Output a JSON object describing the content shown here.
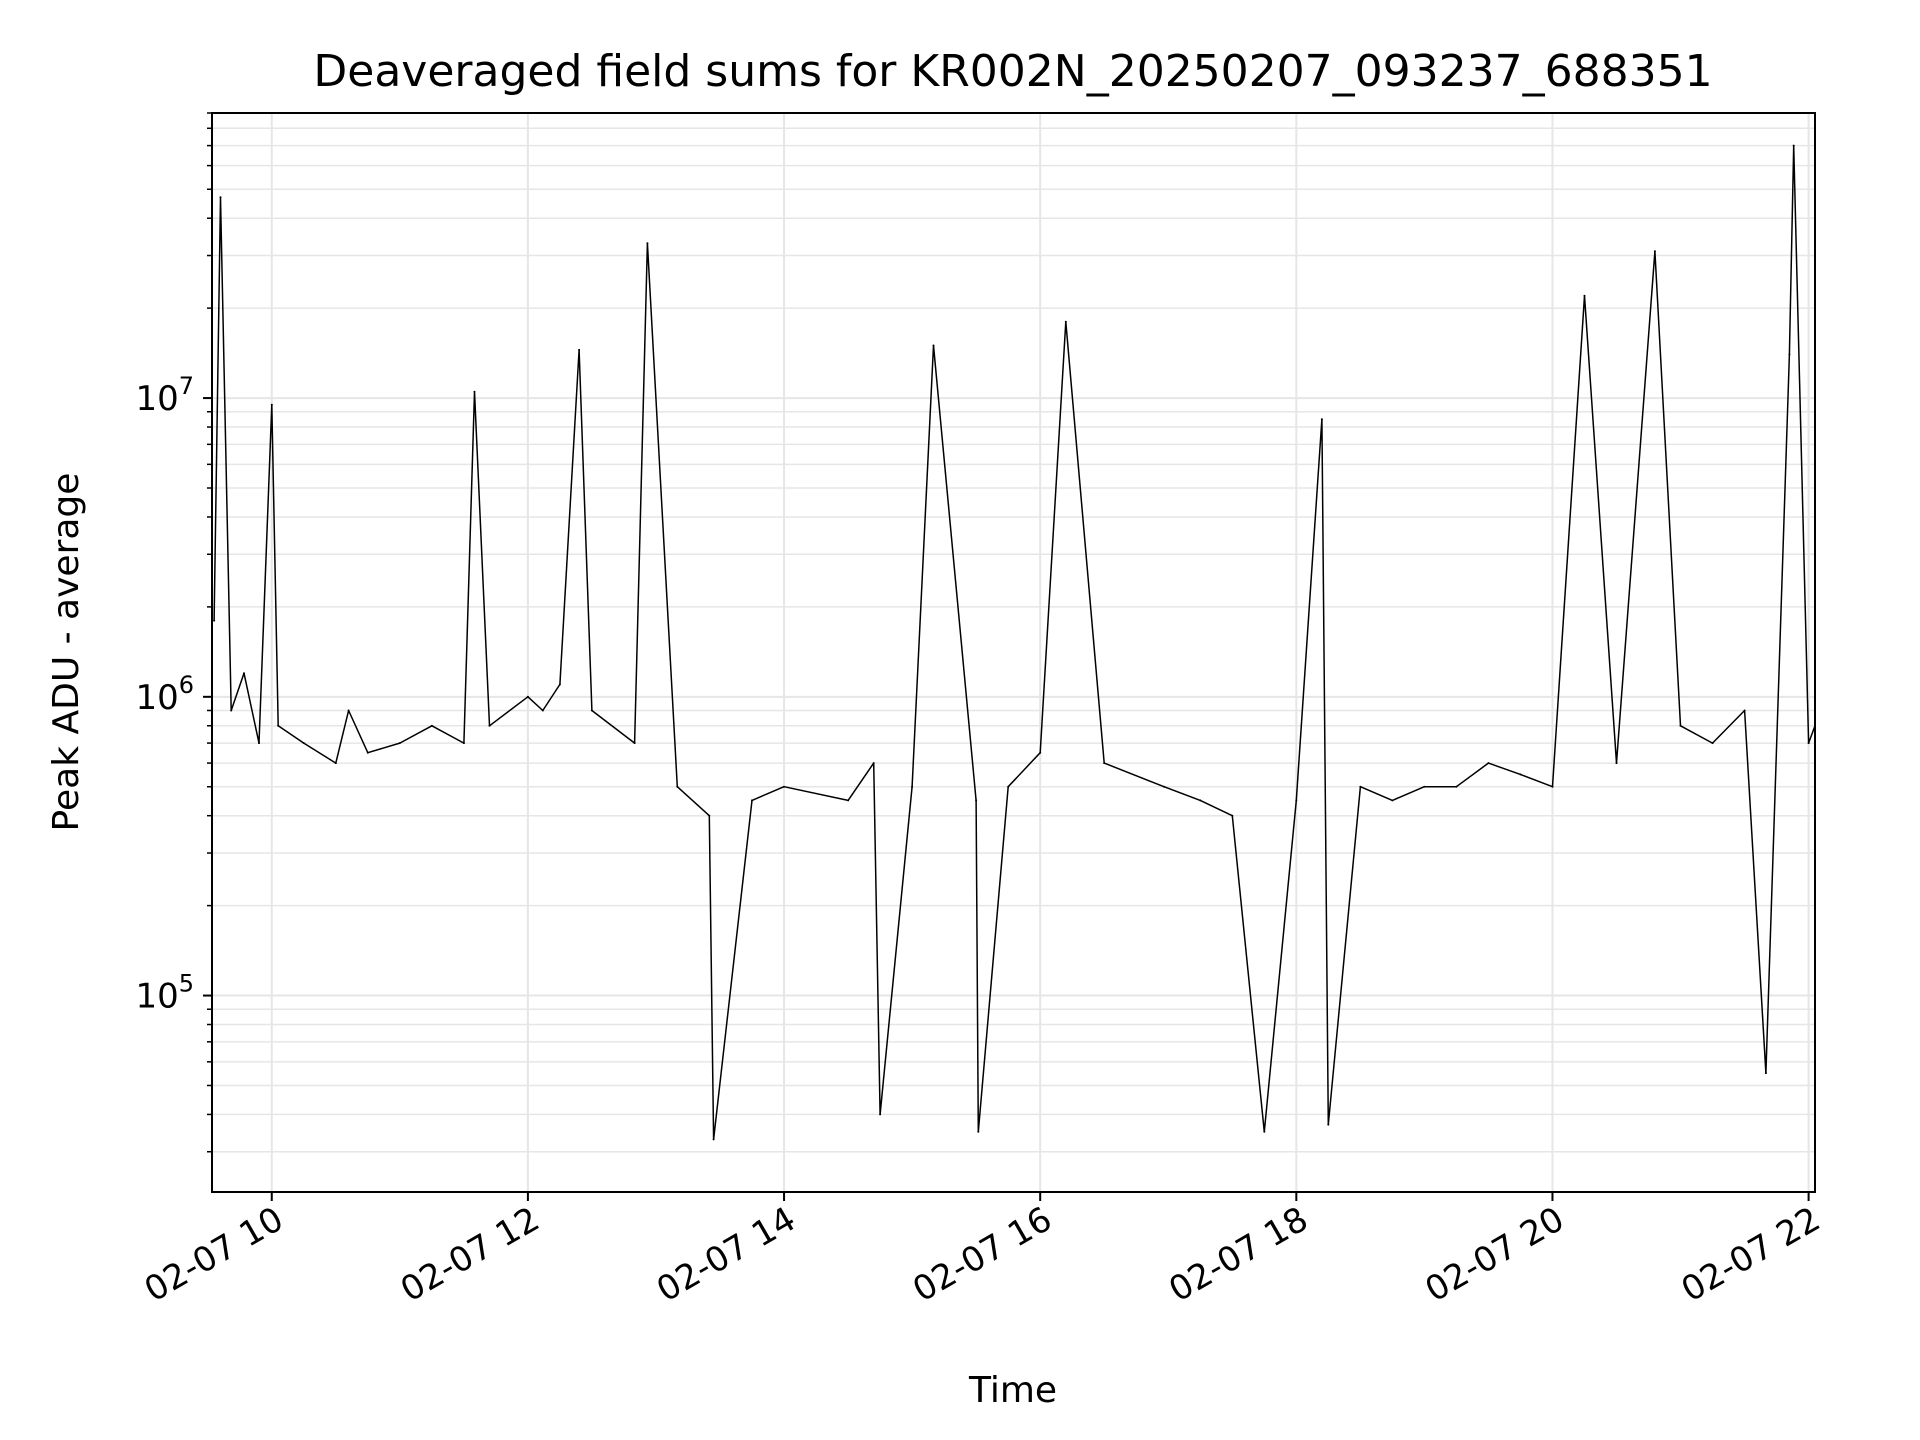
{
  "chart_data": {
    "type": "line",
    "title": "Deaveraged field sums for KR002N_20250207_093237_688351",
    "xlabel": "Time",
    "ylabel": "Peak ADU - average",
    "yscale": "log",
    "ylim": [
      22000,
      90000000
    ],
    "xlim": [
      "2025-02-07 09:32",
      "2025-02-07 22:03"
    ],
    "x_ticks": [
      "02-07 10",
      "02-07 12",
      "02-07 14",
      "02-07 16",
      "02-07 18",
      "02-07 20",
      "02-07 22"
    ],
    "x_tick_values": [
      "2025-02-07 10:00",
      "2025-02-07 12:00",
      "2025-02-07 14:00",
      "2025-02-07 16:00",
      "2025-02-07 18:00",
      "2025-02-07 20:00",
      "2025-02-07 22:00"
    ],
    "y_ticks": [
      {
        "value": 100000,
        "base": "10",
        "exp": "5"
      },
      {
        "value": 1000000,
        "base": "10",
        "exp": "6"
      },
      {
        "value": 10000000,
        "base": "10",
        "exp": "7"
      }
    ],
    "grid": true,
    "legend": "none",
    "line_color": "#000000",
    "series": [
      {
        "x": [
          "2025-02-07 09:33",
          "2025-02-07 09:36",
          "2025-02-07 09:41",
          "2025-02-07 09:47",
          "2025-02-07 09:54",
          "2025-02-07 10:00",
          "2025-02-07 10:03",
          "2025-02-07 10:15",
          "2025-02-07 10:30",
          "2025-02-07 10:36",
          "2025-02-07 10:45",
          "2025-02-07 11:00",
          "2025-02-07 11:15",
          "2025-02-07 11:30",
          "2025-02-07 11:35",
          "2025-02-07 11:42",
          "2025-02-07 12:00",
          "2025-02-07 12:07",
          "2025-02-07 12:15",
          "2025-02-07 12:24",
          "2025-02-07 12:30",
          "2025-02-07 12:50",
          "2025-02-07 12:56",
          "2025-02-07 13:10",
          "2025-02-07 13:25",
          "2025-02-07 13:27",
          "2025-02-07 13:45",
          "2025-02-07 14:00",
          "2025-02-07 14:30",
          "2025-02-07 14:42",
          "2025-02-07 14:45",
          "2025-02-07 15:00",
          "2025-02-07 15:10",
          "2025-02-07 15:30",
          "2025-02-07 15:31",
          "2025-02-07 15:45",
          "2025-02-07 16:00",
          "2025-02-07 16:12",
          "2025-02-07 16:30",
          "2025-02-07 16:58",
          "2025-02-07 17:15",
          "2025-02-07 17:30",
          "2025-02-07 17:45",
          "2025-02-07 18:00",
          "2025-02-07 18:12",
          "2025-02-07 18:15",
          "2025-02-07 18:30",
          "2025-02-07 18:45",
          "2025-02-07 19:00",
          "2025-02-07 19:15",
          "2025-02-07 19:30",
          "2025-02-07 19:45",
          "2025-02-07 20:00",
          "2025-02-07 20:15",
          "2025-02-07 20:30",
          "2025-02-07 20:48",
          "2025-02-07 21:00",
          "2025-02-07 21:15",
          "2025-02-07 21:30",
          "2025-02-07 21:40",
          "2025-02-07 21:51",
          "2025-02-07 21:53",
          "2025-02-07 22:00",
          "2025-02-07 22:03"
        ],
        "y": [
          1800000,
          47000000,
          900000,
          1200000,
          700000,
          9500000,
          800000,
          700000,
          600000,
          900000,
          650000,
          700000,
          800000,
          700000,
          10500000,
          800000,
          1000000,
          900000,
          1100000,
          14500000,
          900000,
          700000,
          33000000,
          500000,
          400000,
          33000,
          450000,
          500000,
          450000,
          600000,
          40000,
          500000,
          15000000,
          450000,
          35000,
          500000,
          650000,
          18000000,
          600000,
          500000,
          450000,
          400000,
          35000,
          450000,
          8500000,
          37000,
          500000,
          450000,
          500000,
          500000,
          600000,
          550000,
          500000,
          22000000,
          600000,
          31000000,
          800000,
          700000,
          900000,
          55000,
          14000000,
          70000000,
          700000,
          800000
        ]
      }
    ]
  }
}
